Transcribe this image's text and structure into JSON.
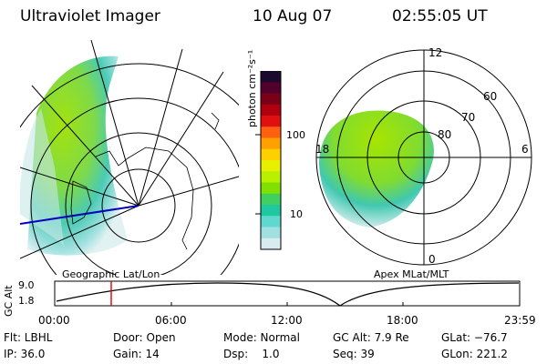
{
  "header": {
    "title": "Ultraviolet Imager",
    "date": "10 Aug 07",
    "time": "02:55:05 UT"
  },
  "colorbar": {
    "unit_label": "photon cm⁻²s⁻¹",
    "ticks": [
      "100",
      "10"
    ],
    "colors": [
      "#1a0a2e",
      "#50002a",
      "#7a0018",
      "#b00010",
      "#e01010",
      "#ff6010",
      "#ffa000",
      "#ffd000",
      "#e8f000",
      "#b8f000",
      "#80e000",
      "#40d060",
      "#20c8a0",
      "#60d8d0",
      "#a0e0e0",
      "#d8ecf0"
    ]
  },
  "geo_panel": {
    "caption": "Geographic Lat/Lon"
  },
  "polar_panel": {
    "caption": "Apex MLat/MLT",
    "mlt_labels": {
      "top": "12",
      "bottom": "0",
      "left": "18",
      "right": "6"
    },
    "lat_labels": [
      "60",
      "70",
      "80"
    ]
  },
  "alt_plot": {
    "axis_label": "GC Alt",
    "y_ticks": [
      "9.0",
      "1.8"
    ],
    "x_ticks": [
      "00:00",
      "06:00",
      "12:00",
      "18:00",
      "23:59"
    ]
  },
  "info": {
    "row1": [
      "Flt: LBHL",
      "Door: Open",
      "Mode: Normal",
      "GC Alt: 7.9 Re",
      "GLat: −76.7"
    ],
    "row2": [
      "IP: 36.0",
      "Gain: 14",
      "Dsp:    1.0",
      "Seq: 39",
      "GLon: 221.2"
    ]
  }
}
